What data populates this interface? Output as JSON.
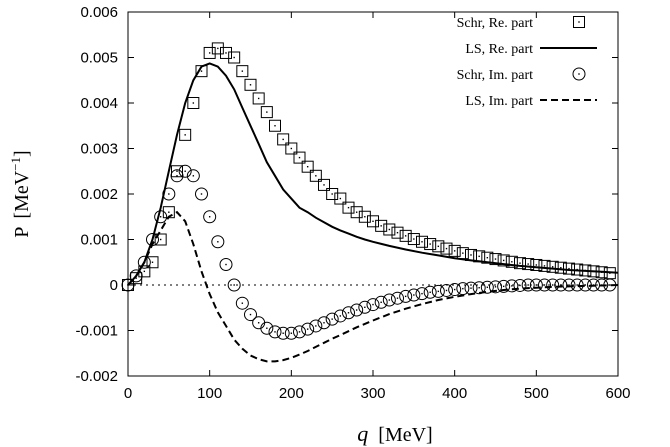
{
  "chart_data": {
    "type": "line",
    "xlabel": "q",
    "xlabel_unit": "[MeV]",
    "ylabel_main": "P",
    "ylabel_unit_base": "[MeV",
    "ylabel_unit_exp": "−1",
    "ylabel_unit_close": "]",
    "xlim": [
      0,
      600
    ],
    "ylim": [
      -0.002,
      0.006
    ],
    "xticks": [
      0,
      100,
      200,
      300,
      400,
      500,
      600
    ],
    "yticks": [
      -0.002,
      -0.001,
      0,
      0.001,
      0.002,
      0.003,
      0.004,
      0.005,
      0.006
    ],
    "xtick_labels": [
      "0",
      "100",
      "200",
      "300",
      "400",
      "500",
      "600"
    ],
    "ytick_labels": [
      "-0.002",
      "-0.001",
      "0",
      "0.001",
      "0.002",
      "0.003",
      "0.004",
      "0.005",
      "0.006"
    ],
    "grid": false,
    "zero_line": true,
    "legend_position": "top-right",
    "series": [
      {
        "name": "Schr, Re. part",
        "style": "open-square",
        "x": [
          0,
          10,
          20,
          30,
          40,
          50,
          60,
          70,
          80,
          90,
          100,
          110,
          120,
          130,
          140,
          150,
          160,
          170,
          180,
          190,
          200,
          210,
          220,
          230,
          240,
          250,
          260,
          270,
          280,
          290,
          300,
          310,
          320,
          330,
          340,
          350,
          360,
          370,
          380,
          390,
          400,
          410,
          420,
          430,
          440,
          450,
          460,
          470,
          480,
          490,
          500,
          510,
          520,
          530,
          540,
          550,
          560,
          570,
          580,
          590
        ],
        "y": [
          0.0,
          0.00015,
          0.0003,
          0.0005,
          0.001,
          0.0016,
          0.0025,
          0.0033,
          0.004,
          0.0047,
          0.0051,
          0.0052,
          0.0051,
          0.005,
          0.0047,
          0.0044,
          0.0041,
          0.0038,
          0.0035,
          0.0032,
          0.003,
          0.0028,
          0.0026,
          0.0024,
          0.0022,
          0.002,
          0.0019,
          0.0017,
          0.0016,
          0.0015,
          0.0014,
          0.0013,
          0.00122,
          0.00115,
          0.00108,
          0.00101,
          0.00095,
          0.0009,
          0.00085,
          0.0008,
          0.00075,
          0.0007,
          0.00066,
          0.00063,
          0.0006,
          0.00057,
          0.00054,
          0.00051,
          0.00048,
          0.00046,
          0.00044,
          0.00042,
          0.0004,
          0.00038,
          0.00036,
          0.00034,
          0.00032,
          0.0003,
          0.00028,
          0.00026
        ]
      },
      {
        "name": "LS,   Re. part",
        "style": "solid",
        "x": [
          0,
          10,
          20,
          30,
          40,
          50,
          60,
          70,
          80,
          90,
          100,
          110,
          120,
          130,
          140,
          150,
          160,
          170,
          180,
          190,
          200,
          210,
          220,
          230,
          240,
          250,
          260,
          270,
          280,
          290,
          300,
          320,
          340,
          360,
          380,
          400,
          420,
          440,
          460,
          480,
          500,
          520,
          540,
          560,
          580,
          600
        ],
        "y": [
          0.0,
          0.0002,
          0.0005,
          0.001,
          0.0017,
          0.0025,
          0.0033,
          0.004,
          0.0045,
          0.0048,
          0.00487,
          0.0048,
          0.0046,
          0.0043,
          0.0039,
          0.0035,
          0.0031,
          0.0027,
          0.0024,
          0.0021,
          0.0019,
          0.0017,
          0.0016,
          0.00148,
          0.00138,
          0.00128,
          0.0012,
          0.00113,
          0.00106,
          0.001,
          0.00095,
          0.00086,
          0.00078,
          0.00071,
          0.00065,
          0.00059,
          0.00054,
          0.0005,
          0.00046,
          0.00042,
          0.00039,
          0.00036,
          0.00033,
          0.00031,
          0.00029,
          0.00027
        ]
      },
      {
        "name": "Schr, Im. part",
        "style": "open-circle",
        "x": [
          0,
          10,
          20,
          30,
          40,
          50,
          60,
          70,
          80,
          90,
          100,
          110,
          120,
          130,
          140,
          150,
          160,
          170,
          180,
          190,
          200,
          210,
          220,
          230,
          240,
          250,
          260,
          270,
          280,
          290,
          300,
          310,
          320,
          330,
          340,
          350,
          360,
          370,
          380,
          390,
          400,
          410,
          420,
          430,
          440,
          450,
          460,
          470,
          480,
          490,
          500,
          510,
          520,
          530,
          540,
          550,
          560,
          570,
          580,
          590
        ],
        "y": [
          0.0,
          0.0002,
          0.0005,
          0.001,
          0.0015,
          0.002,
          0.0024,
          0.0025,
          0.0024,
          0.002,
          0.0015,
          0.00095,
          0.00045,
          0.0,
          -0.0004,
          -0.00065,
          -0.00083,
          -0.00095,
          -0.00103,
          -0.00106,
          -0.00106,
          -0.00103,
          -0.00097,
          -0.0009,
          -0.00083,
          -0.00075,
          -0.00068,
          -0.00061,
          -0.00055,
          -0.00049,
          -0.00043,
          -0.00038,
          -0.00033,
          -0.00029,
          -0.00025,
          -0.00022,
          -0.00019,
          -0.00016,
          -0.00014,
          -0.00012,
          -0.0001,
          -8e-05,
          -7e-05,
          -6e-05,
          -5e-05,
          -4e-05,
          -3e-05,
          -2e-05,
          -1e-05,
          0.0,
          0.0,
          0.0,
          0.0,
          0.0,
          0.0,
          0.0,
          0.0,
          0.0,
          0.0,
          0.0
        ]
      },
      {
        "name": "LS,    Im. part",
        "style": "dashed",
        "x": [
          0,
          10,
          20,
          30,
          40,
          50,
          60,
          70,
          80,
          90,
          100,
          110,
          120,
          130,
          140,
          150,
          160,
          170,
          180,
          190,
          200,
          210,
          220,
          230,
          240,
          250,
          260,
          280,
          300,
          320,
          340,
          360,
          380,
          400,
          420,
          440,
          460,
          480,
          500,
          520,
          540,
          560,
          580,
          600
        ],
        "y": [
          0.0,
          0.0002,
          0.0005,
          0.0009,
          0.0012,
          0.0015,
          0.0016,
          0.0014,
          0.0009,
          0.0003,
          -0.0002,
          -0.0006,
          -0.0009,
          -0.0012,
          -0.0014,
          -0.00155,
          -0.00163,
          -0.00168,
          -0.00168,
          -0.00165,
          -0.0016,
          -0.00153,
          -0.00145,
          -0.00136,
          -0.00127,
          -0.00118,
          -0.0011,
          -0.00093,
          -0.00078,
          -0.00064,
          -0.00052,
          -0.00042,
          -0.00033,
          -0.00026,
          -0.0002,
          -0.00015,
          -0.00011,
          -8e-05,
          -6e-05,
          -4e-05,
          -3e-05,
          -2e-05,
          -1e-05,
          0.0
        ]
      }
    ]
  }
}
